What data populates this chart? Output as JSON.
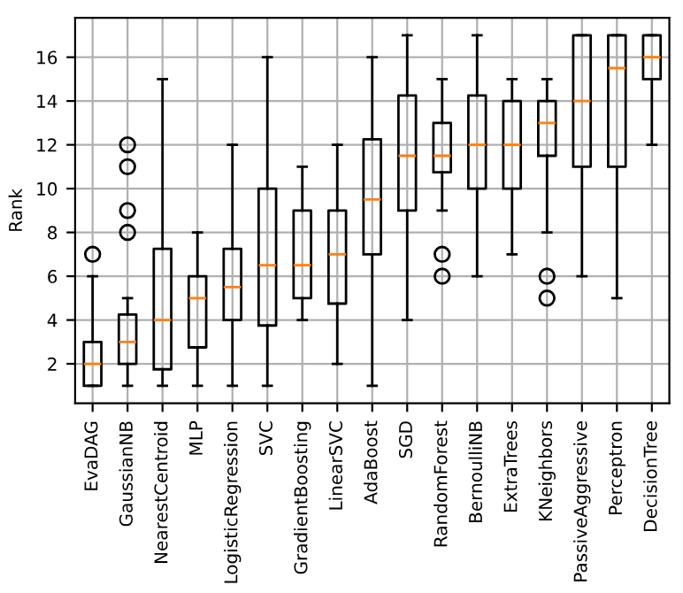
{
  "chart_data": {
    "type": "box",
    "ylabel": "Rank",
    "categories": [
      "EvaDAG",
      "GaussianNB",
      "NearestCentroid",
      "MLP",
      "LogisticRegression",
      "SVC",
      "GradientBoosting",
      "LinearSVC",
      "AdaBoost",
      "SGD",
      "RandomForest",
      "BernoulliNB",
      "ExtraTrees",
      "KNeighbors",
      "PassiveAggressive",
      "Perceptron",
      "DecisionTree"
    ],
    "boxes": [
      {
        "low": 1,
        "q1": 1,
        "median": 2,
        "q3": 3,
        "high": 6,
        "outliers": [
          7
        ]
      },
      {
        "low": 1,
        "q1": 2,
        "median": 3,
        "q3": 4.25,
        "high": 5,
        "outliers": [
          8,
          9,
          11,
          12
        ]
      },
      {
        "low": 1,
        "q1": 1.75,
        "median": 4,
        "q3": 7.25,
        "high": 15
      },
      {
        "low": 1,
        "q1": 2.75,
        "median": 5,
        "q3": 6,
        "high": 8
      },
      {
        "low": 1,
        "q1": 4,
        "median": 5.5,
        "q3": 7.25,
        "high": 12
      },
      {
        "low": 1,
        "q1": 3.75,
        "median": 6.5,
        "q3": 10,
        "high": 16
      },
      {
        "low": 4,
        "q1": 5,
        "median": 6.5,
        "q3": 9,
        "high": 11
      },
      {
        "low": 2,
        "q1": 4.75,
        "median": 7,
        "q3": 9,
        "high": 12
      },
      {
        "low": 1,
        "q1": 7,
        "median": 9.5,
        "q3": 12.25,
        "high": 16
      },
      {
        "low": 4,
        "q1": 9,
        "median": 11.5,
        "q3": 14.25,
        "high": 17
      },
      {
        "low": 9,
        "q1": 10.75,
        "median": 11.5,
        "q3": 13,
        "high": 15,
        "outliers": [
          7,
          6
        ]
      },
      {
        "low": 6,
        "q1": 10,
        "median": 12,
        "q3": 14.25,
        "high": 17
      },
      {
        "low": 7,
        "q1": 10,
        "median": 12,
        "q3": 14,
        "high": 15
      },
      {
        "low": 8,
        "q1": 11.5,
        "median": 13,
        "q3": 14,
        "high": 15,
        "outliers": [
          6,
          5
        ]
      },
      {
        "low": 6,
        "q1": 11,
        "median": 14,
        "q3": 17,
        "high": 17
      },
      {
        "low": 5,
        "q1": 11,
        "median": 15.5,
        "q3": 17,
        "high": 17
      },
      {
        "low": 12,
        "q1": 15,
        "median": 16,
        "q3": 17,
        "high": 17
      }
    ],
    "color": "#000000",
    "ylim": [
      0.2,
      17.8
    ],
    "yticks": [
      2,
      4,
      6,
      8,
      10,
      12,
      14,
      16
    ],
    "grid": true
  }
}
